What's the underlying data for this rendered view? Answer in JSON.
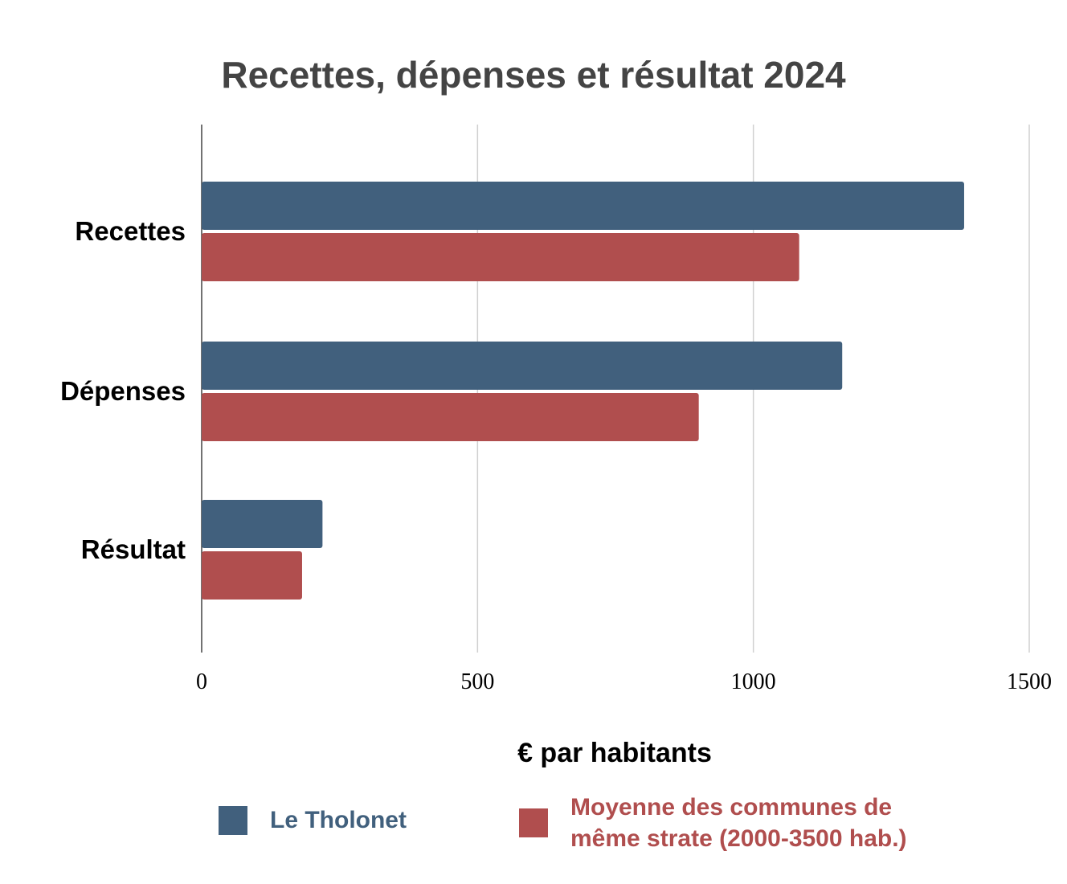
{
  "chart_data": {
    "type": "bar",
    "orientation": "horizontal",
    "title": "Recettes, dépenses et résultat 2024",
    "xlabel": "€ par habitants",
    "ylabel": "",
    "categories": [
      "Recettes",
      "Dépenses",
      "Résultat"
    ],
    "series": [
      {
        "name": "Le Tholonet",
        "color": "#41607d",
        "values": [
          1382,
          1161,
          219
        ]
      },
      {
        "name": "Moyenne des communes de même strate (2000-3500 hab.)",
        "color": "#b04e4e",
        "values": [
          1083,
          901,
          182
        ]
      }
    ],
    "xlim": [
      0,
      1500
    ],
    "xticks": [
      "0",
      "500",
      "1000",
      "1500"
    ],
    "grid": true,
    "legend": "bottom",
    "legend_lines": [
      "Moyenne des communes de",
      "même strate (2000-3500 hab.)"
    ]
  }
}
